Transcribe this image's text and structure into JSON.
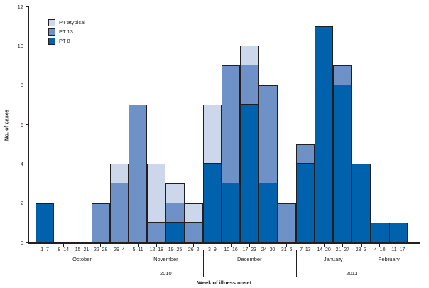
{
  "figure": {
    "y_axis_title": "No. of cases",
    "x_axis_title": "Week of illness onset"
  },
  "legend": {
    "items": [
      {
        "label": "PT atypical",
        "color": "#ccd7ec"
      },
      {
        "label": "PT 13",
        "color": "#6e91c8"
      },
      {
        "label": "PT 8",
        "color": "#0062ad"
      }
    ]
  },
  "colors": {
    "axis": "#231f20",
    "pt8": "#0062ad",
    "pt13": "#6e91c8",
    "pt_atypical": "#ccd7ec"
  },
  "chart_data": {
    "type": "bar",
    "stacked": true,
    "title": "",
    "xlabel": "Week of illness onset",
    "ylabel": "No. of cases",
    "ylim": [
      0,
      12
    ],
    "y_ticks": [
      0,
      2,
      4,
      6,
      8,
      10,
      12
    ],
    "grid": false,
    "legend_position": "top-left",
    "categories": [
      "1–7",
      "8–14",
      "15–21",
      "22–28",
      "29–4",
      "5–11",
      "12–18",
      "19–25",
      "26–2",
      "3–9",
      "10–16",
      "17–23",
      "24–30",
      "31–6",
      "7–13",
      "14–20",
      "21–27",
      "28–3",
      "4–10",
      "11–17"
    ],
    "series": [
      {
        "name": "PT 8",
        "color": "#0062ad",
        "values": [
          2,
          0,
          0,
          0,
          0,
          0,
          0,
          1,
          0,
          4,
          3,
          7,
          3,
          0,
          4,
          11,
          8,
          4,
          1,
          1
        ]
      },
      {
        "name": "PT 13",
        "color": "#6e91c8",
        "values": [
          0,
          0,
          0,
          2,
          3,
          7,
          1,
          1,
          1,
          0,
          6,
          2,
          5,
          2,
          1,
          0,
          1,
          0,
          0,
          0
        ]
      },
      {
        "name": "PT atypical",
        "color": "#ccd7ec",
        "values": [
          0,
          0,
          0,
          0,
          1,
          0,
          3,
          1,
          1,
          3,
          0,
          1,
          0,
          0,
          0,
          0,
          0,
          0,
          0,
          0
        ]
      }
    ],
    "totals": [
      2,
      0,
      0,
      2,
      4,
      7,
      4,
      3,
      2,
      7,
      9,
      10,
      8,
      2,
      5,
      11,
      9,
      4,
      1,
      1
    ],
    "months": [
      {
        "label": "October",
        "start": 0,
        "end": 5
      },
      {
        "label": "November",
        "start": 5,
        "end": 9
      },
      {
        "label": "December",
        "start": 9,
        "end": 14
      },
      {
        "label": "January",
        "start": 14,
        "end": 18
      },
      {
        "label": "February",
        "start": 18,
        "end": 20
      }
    ],
    "years": [
      {
        "label": "2010",
        "start": 0,
        "end": 14
      },
      {
        "label": "2011",
        "start": 14,
        "end": 20
      }
    ]
  }
}
